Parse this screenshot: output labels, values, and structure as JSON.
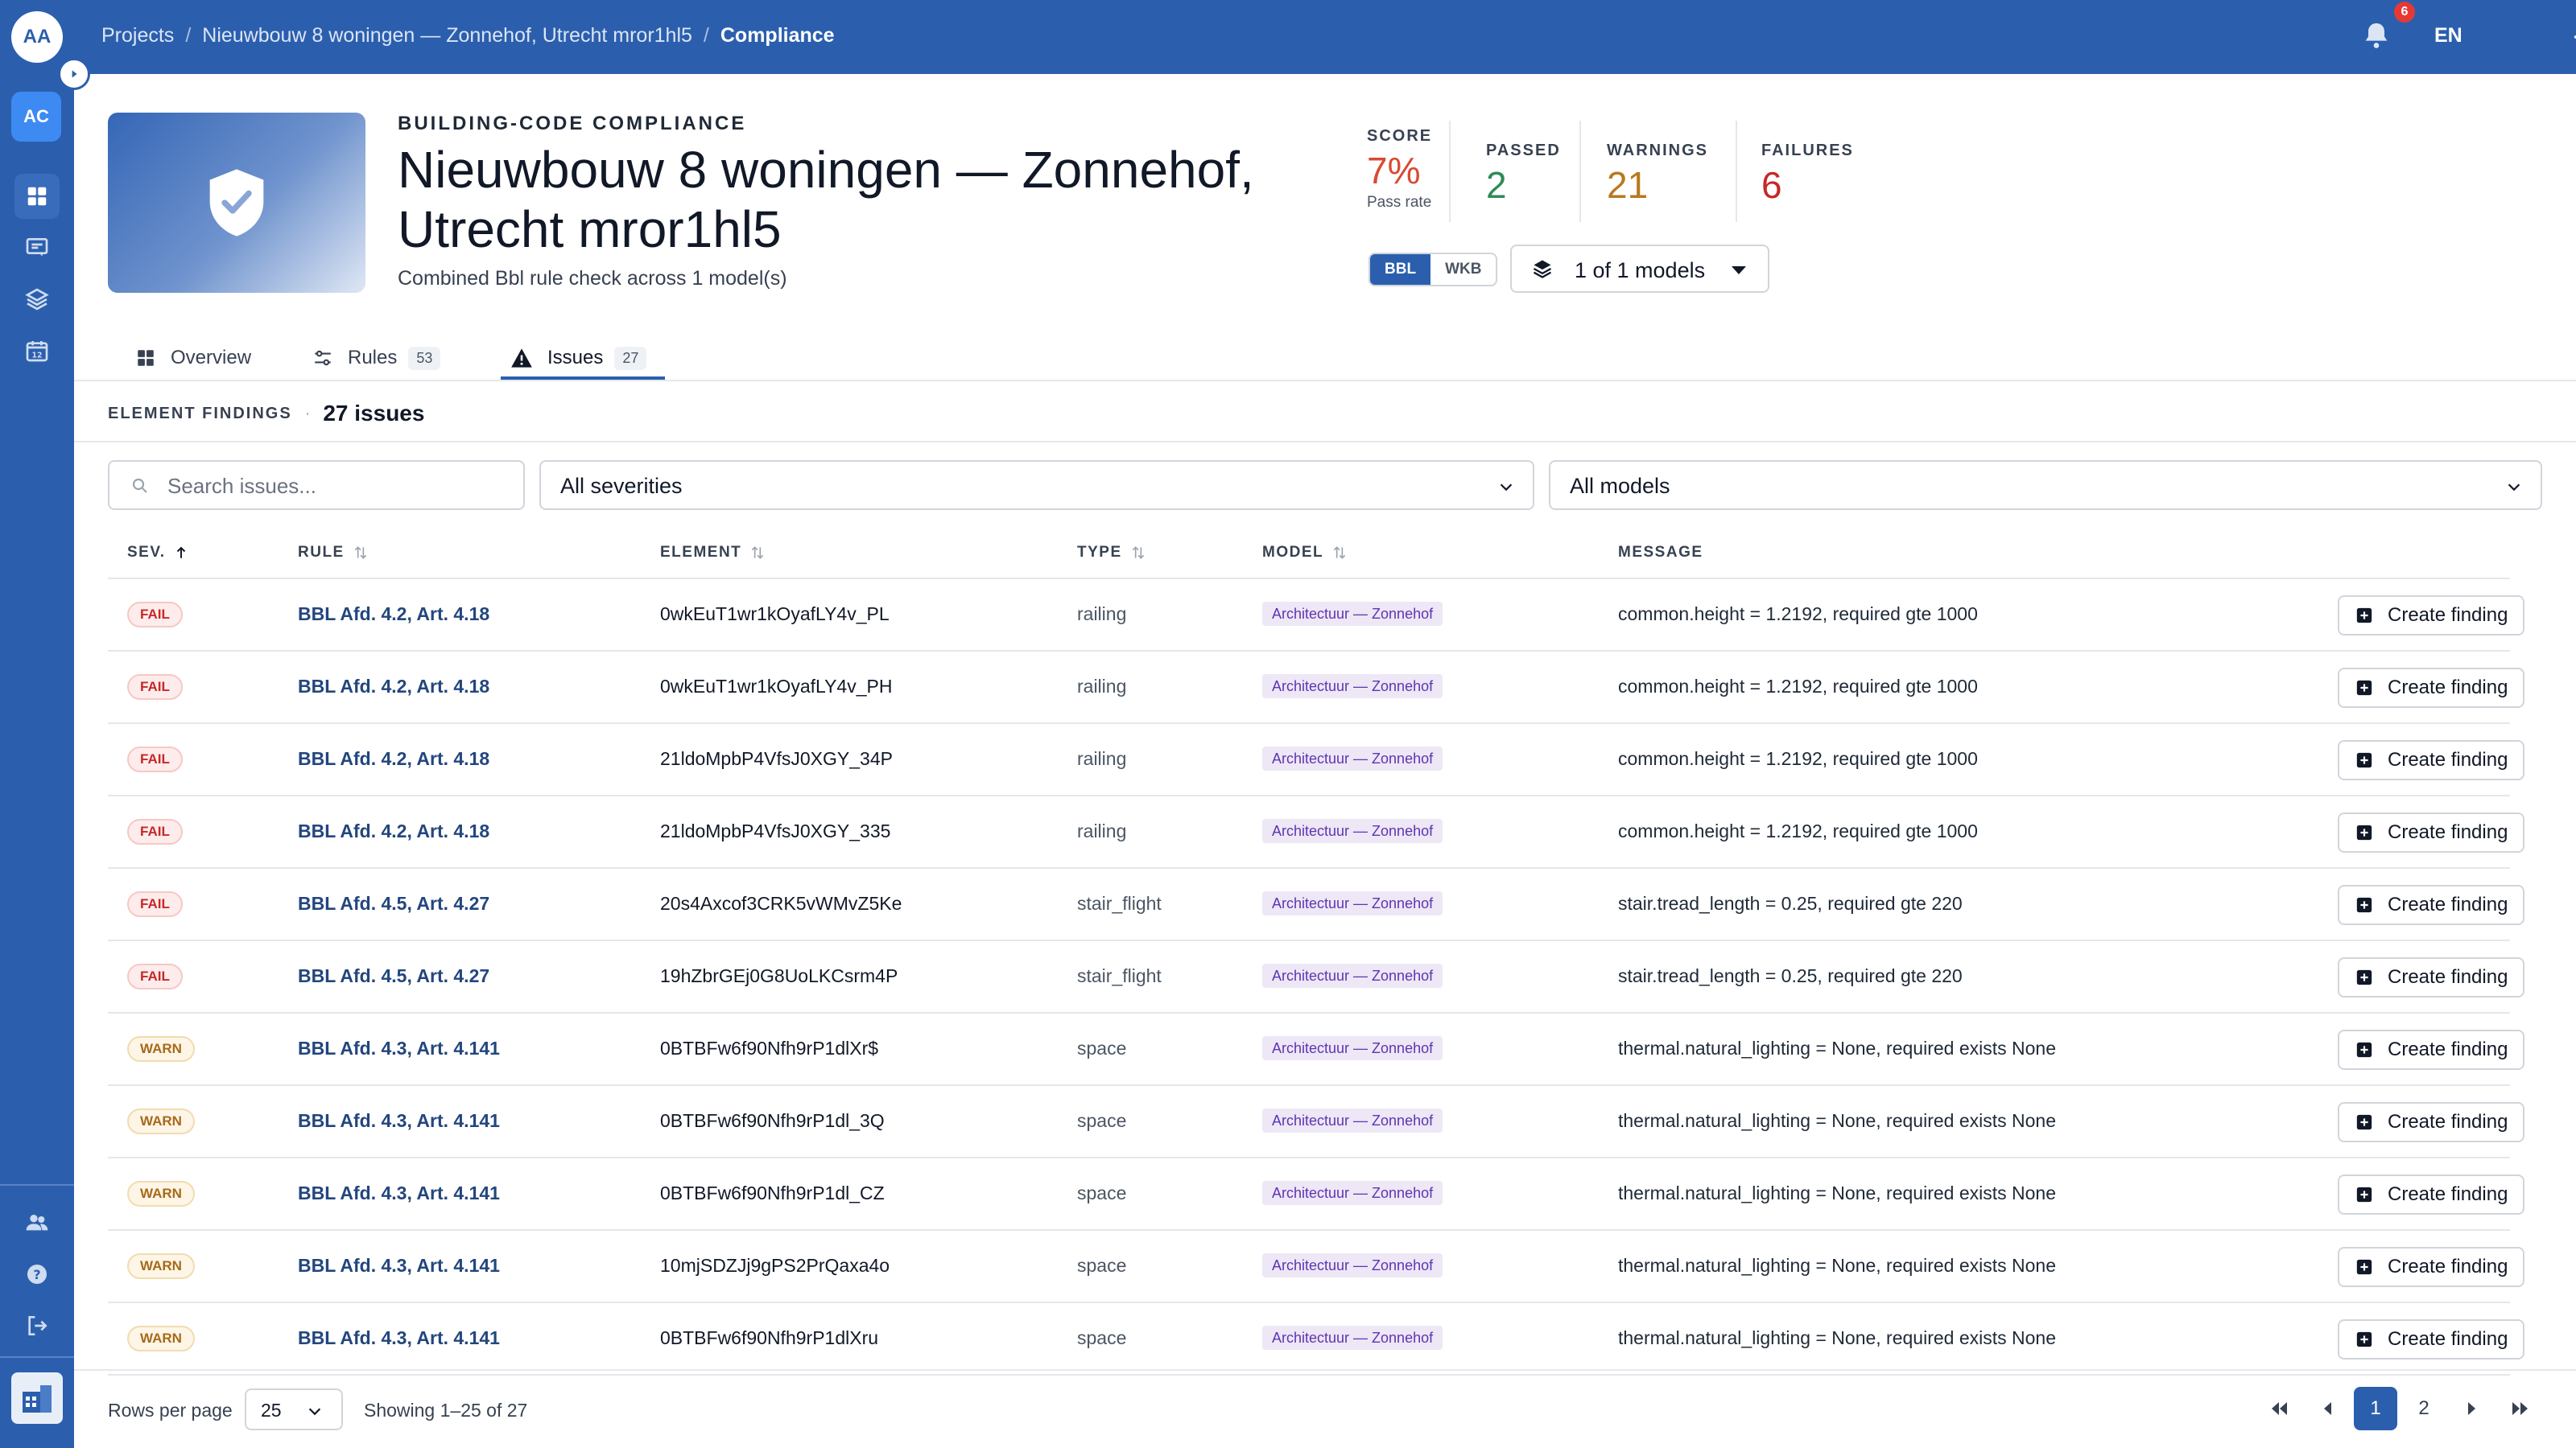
{
  "sidebar": {
    "avatar": "AA",
    "workspace": "AC"
  },
  "topbar": {
    "breadcrumbs": [
      "Projects",
      "Nieuwbouw 8 woningen — Zonnehof, Utrecht mror1hl5",
      "Compliance"
    ],
    "notifications": "6",
    "language": "EN"
  },
  "header": {
    "eyebrow": "BUILDING-CODE COMPLIANCE",
    "title": "Nieuwbouw 8 woningen — Zonnehof, Utrecht mror1hl5",
    "subtitle": "Combined Bbl rule check across 1 model(s)",
    "stats": {
      "score_label": "SCORE",
      "score": "7%",
      "score_sub": "Pass rate",
      "passed_label": "PASSED",
      "passed": "2",
      "warnings_label": "WARNINGS",
      "warnings": "21",
      "failures_label": "FAILURES",
      "failures": "6"
    },
    "toggle": [
      "BBL",
      "WKB"
    ],
    "models_selector": "1 of 1 models",
    "colors": {
      "score": "#d84a33",
      "passed": "#2e8b57",
      "warnings": "#b7791f",
      "failures": "#c62828"
    }
  },
  "tabs": [
    {
      "label": "Overview",
      "count": ""
    },
    {
      "label": "Rules",
      "count": "53"
    },
    {
      "label": "Issues",
      "count": "27"
    }
  ],
  "findings": {
    "label": "ELEMENT FINDINGS",
    "count": "27 issues",
    "search_placeholder": "Search issues...",
    "severity_filter": "All severities",
    "model_filter": "All models"
  },
  "table": {
    "headers": {
      "sev": "SEV.",
      "rule": "RULE",
      "element": "ELEMENT",
      "type": "TYPE",
      "model": "MODEL",
      "message": "MESSAGE"
    },
    "action_label": "Create finding",
    "rows": [
      {
        "sev": "FAIL",
        "rule": "BBL Afd. 4.2, Art. 4.18",
        "element": "0wkEuT1wr1kOyafLY4v_PL",
        "type": "railing",
        "model": "Architectuur — Zonnehof",
        "message": "common.height = 1.2192, required gte 1000"
      },
      {
        "sev": "FAIL",
        "rule": "BBL Afd. 4.2, Art. 4.18",
        "element": "0wkEuT1wr1kOyafLY4v_PH",
        "type": "railing",
        "model": "Architectuur — Zonnehof",
        "message": "common.height = 1.2192, required gte 1000"
      },
      {
        "sev": "FAIL",
        "rule": "BBL Afd. 4.2, Art. 4.18",
        "element": "21ldoMpbP4VfsJ0XGY_34P",
        "type": "railing",
        "model": "Architectuur — Zonnehof",
        "message": "common.height = 1.2192, required gte 1000"
      },
      {
        "sev": "FAIL",
        "rule": "BBL Afd. 4.2, Art. 4.18",
        "element": "21ldoMpbP4VfsJ0XGY_335",
        "type": "railing",
        "model": "Architectuur — Zonnehof",
        "message": "common.height = 1.2192, required gte 1000"
      },
      {
        "sev": "FAIL",
        "rule": "BBL Afd. 4.5, Art. 4.27",
        "element": "20s4Axcof3CRK5vWMvZ5Ke",
        "type": "stair_flight",
        "model": "Architectuur — Zonnehof",
        "message": "stair.tread_length = 0.25, required gte 220"
      },
      {
        "sev": "FAIL",
        "rule": "BBL Afd. 4.5, Art. 4.27",
        "element": "19hZbrGEj0G8UoLKCsrm4P",
        "type": "stair_flight",
        "model": "Architectuur — Zonnehof",
        "message": "stair.tread_length = 0.25, required gte 220"
      },
      {
        "sev": "WARN",
        "rule": "BBL Afd. 4.3, Art. 4.141",
        "element": "0BTBFw6f90Nfh9rP1dlXr$",
        "type": "space",
        "model": "Architectuur — Zonnehof",
        "message": "thermal.natural_lighting = None, required exists None"
      },
      {
        "sev": "WARN",
        "rule": "BBL Afd. 4.3, Art. 4.141",
        "element": "0BTBFw6f90Nfh9rP1dl_3Q",
        "type": "space",
        "model": "Architectuur — Zonnehof",
        "message": "thermal.natural_lighting = None, required exists None"
      },
      {
        "sev": "WARN",
        "rule": "BBL Afd. 4.3, Art. 4.141",
        "element": "0BTBFw6f90Nfh9rP1dl_CZ",
        "type": "space",
        "model": "Architectuur — Zonnehof",
        "message": "thermal.natural_lighting = None, required exists None"
      },
      {
        "sev": "WARN",
        "rule": "BBL Afd. 4.3, Art. 4.141",
        "element": "10mjSDZJj9gPS2PrQaxa4o",
        "type": "space",
        "model": "Architectuur — Zonnehof",
        "message": "thermal.natural_lighting = None, required exists None"
      },
      {
        "sev": "WARN",
        "rule": "BBL Afd. 4.3, Art. 4.141",
        "element": "0BTBFw6f90Nfh9rP1dlXru",
        "type": "space",
        "model": "Architectuur — Zonnehof",
        "message": "thermal.natural_lighting = None, required exists None"
      }
    ]
  },
  "footer": {
    "rows_per_page_label": "Rows per page",
    "rows_per_page": "25",
    "showing": "Showing 1–25 of 27",
    "pages": [
      "1",
      "2"
    ]
  }
}
